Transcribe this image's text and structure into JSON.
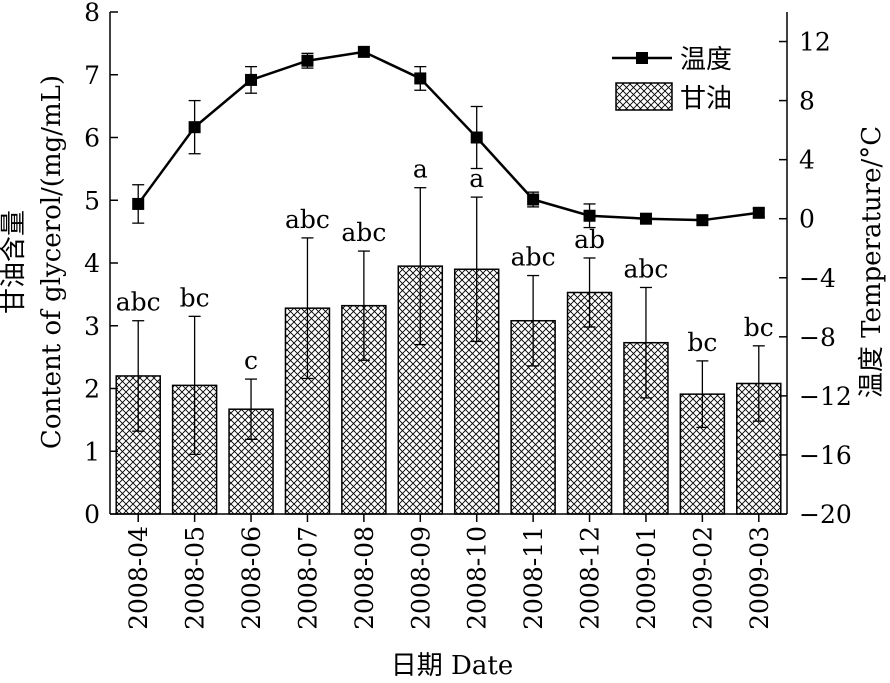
{
  "chart_data": {
    "type": "bar",
    "categories": [
      "2008-04",
      "2008-05",
      "2008-06",
      "2008-07",
      "2008-08",
      "2008-09",
      "2008-10",
      "2008-11",
      "2008-12",
      "2009-01",
      "2009-02",
      "2009-03"
    ],
    "xlabel": "日期 Date",
    "ylabel_left_cn": "甘油含量",
    "ylabel_left_en": "Content of glycerol/(mg/mL)",
    "ylabel_right": "温度 Temperature/°C",
    "y_left": {
      "range": [
        0,
        8
      ],
      "ticks": [
        "0",
        "1",
        "2",
        "3",
        "4",
        "5",
        "6",
        "7",
        "8"
      ]
    },
    "y_right": {
      "range": [
        -20,
        14
      ],
      "ticks": [
        "−20",
        "−16",
        "−12",
        "−8",
        "−4",
        "0",
        "4",
        "8",
        "12"
      ]
    },
    "series": [
      {
        "name": "甘油",
        "kind": "bar",
        "axis": "left",
        "values": [
          2.2,
          2.05,
          1.67,
          3.28,
          3.32,
          3.95,
          3.9,
          3.08,
          3.53,
          2.73,
          1.91,
          2.08
        ],
        "err": [
          0.88,
          1.1,
          0.48,
          1.12,
          0.87,
          1.25,
          1.15,
          0.72,
          0.55,
          0.88,
          0.53,
          0.6
        ],
        "labels": [
          "abc",
          "bc",
          "c",
          "abc",
          "abc",
          "a",
          "a",
          "abc",
          "ab",
          "abc",
          "bc",
          "bc"
        ]
      },
      {
        "name": "温度",
        "kind": "line",
        "axis": "right",
        "values": [
          1.0,
          6.2,
          9.4,
          10.7,
          11.3,
          9.5,
          5.5,
          1.3,
          0.2,
          0.0,
          -0.1,
          0.4
        ],
        "err": [
          1.3,
          1.8,
          0.9,
          0.5,
          0.0,
          0.8,
          2.1,
          0.5,
          0.8,
          0.0,
          0.0,
          0.3
        ]
      }
    ],
    "legend": {
      "position": "top-right",
      "items": [
        "温度",
        "甘油"
      ]
    }
  }
}
